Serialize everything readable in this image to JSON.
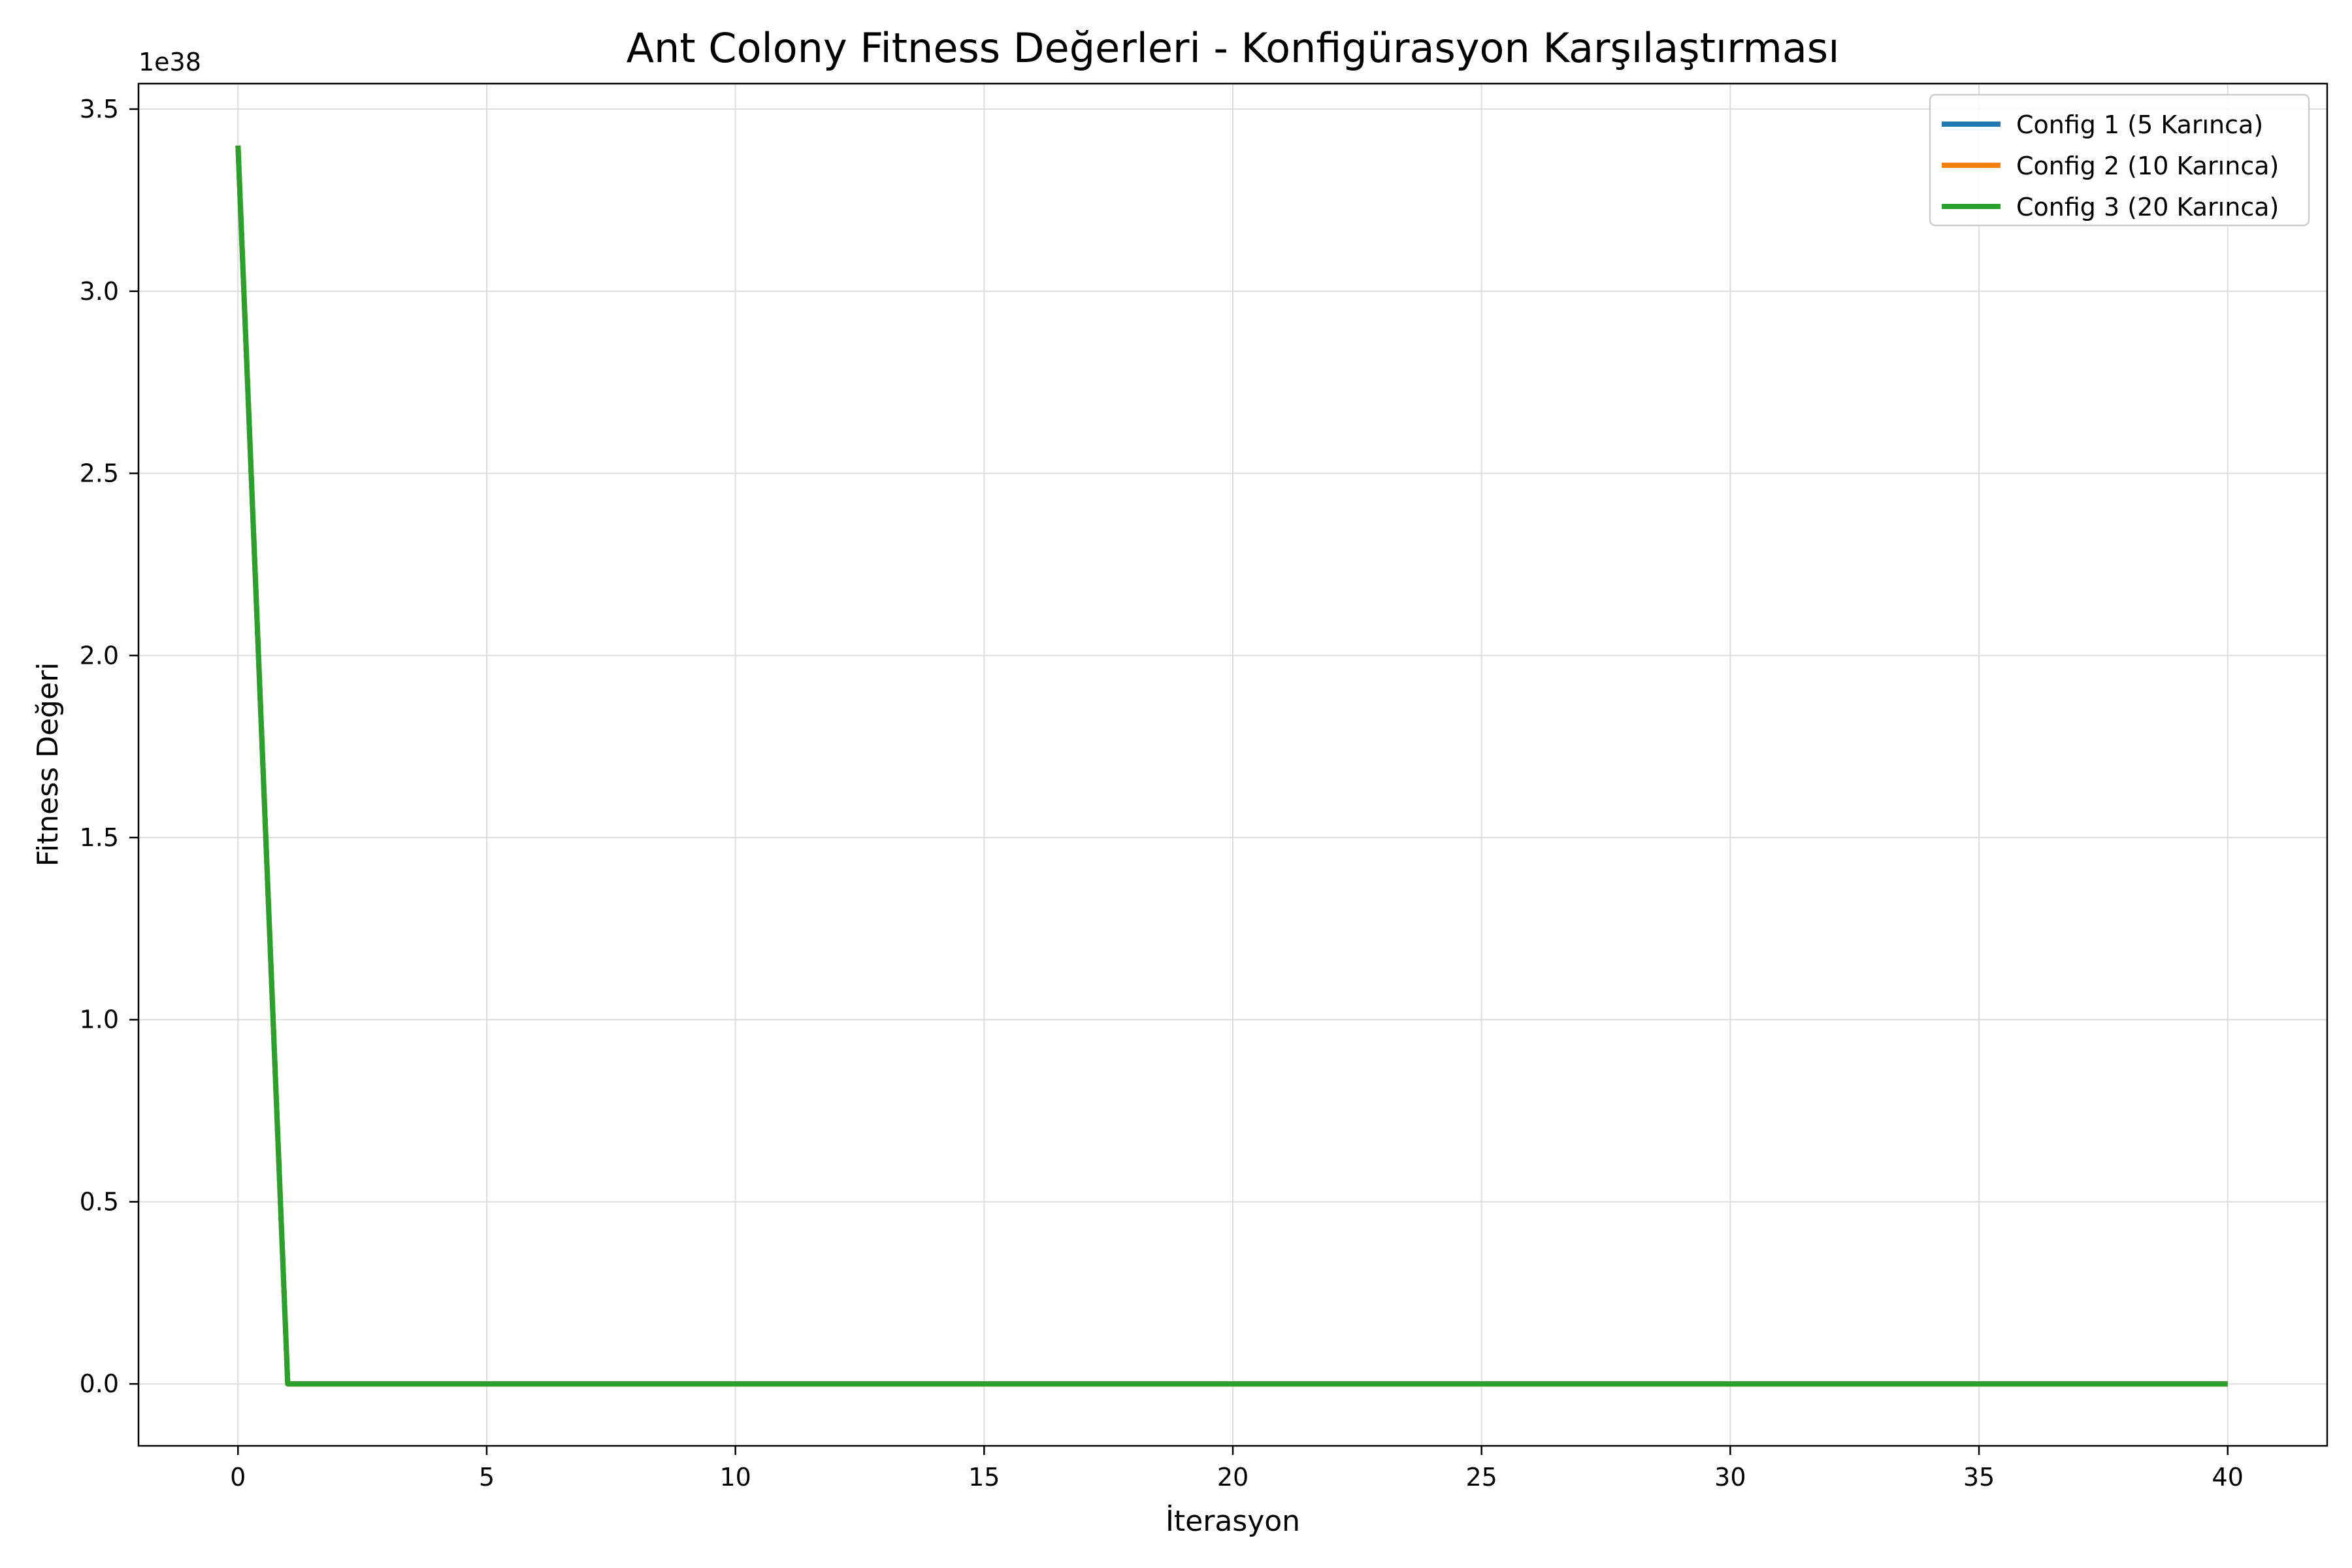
{
  "chart_data": {
    "type": "line",
    "title": "Ant Colony Fitness Değerleri - Konfigürasyon Karşılaştırması",
    "xlabel": "İterasyon",
    "ylabel": "Fitness Değeri",
    "y_offset_label": "1e38",
    "y_scale": 1e+38,
    "xlim": [
      -2,
      42
    ],
    "ylim": [
      -0.17,
      3.57
    ],
    "xticks": [
      0,
      5,
      10,
      15,
      20,
      25,
      30,
      35,
      40
    ],
    "yticks": [
      0.0,
      0.5,
      1.0,
      1.5,
      2.0,
      2.5,
      3.0,
      3.5
    ],
    "ytick_labels": [
      "0.0",
      "0.5",
      "1.0",
      "1.5",
      "2.0",
      "2.5",
      "3.0",
      "3.5"
    ],
    "grid": true,
    "legend_position": "top-right",
    "x": [
      0,
      1,
      2,
      3,
      4,
      5,
      6,
      7,
      8,
      9,
      10,
      11,
      12,
      13,
      14,
      15,
      16,
      17,
      18,
      19,
      20,
      21,
      22,
      23,
      24,
      25,
      26,
      27,
      28,
      29,
      30,
      31,
      32,
      33,
      34,
      35,
      36,
      37,
      38,
      39,
      40
    ],
    "series": [
      {
        "name": "Config 1 (5 Karınca)",
        "color": "#1f77b4",
        "values": [
          3.4,
          0,
          0,
          0,
          0,
          0,
          0,
          0,
          0,
          0,
          0,
          0,
          0,
          0,
          0,
          0,
          0,
          0,
          0,
          0,
          0,
          0,
          0,
          0,
          0,
          0,
          0,
          0,
          0,
          0,
          0,
          0,
          0,
          0,
          0,
          0,
          0,
          0,
          0,
          0,
          0
        ]
      },
      {
        "name": "Config 2 (10 Karınca)",
        "color": "#ff7f0e",
        "values": [
          3.4,
          0,
          0,
          0,
          0,
          0,
          0,
          0,
          0,
          0,
          0,
          0,
          0,
          0,
          0,
          0,
          0,
          0,
          0,
          0,
          0,
          0,
          0,
          0,
          0,
          0,
          0,
          0,
          0,
          0,
          0,
          0,
          0,
          0,
          0,
          0,
          0,
          0,
          0,
          0,
          0
        ]
      },
      {
        "name": "Config 3 (20 Karınca)",
        "color": "#2ca02c",
        "values": [
          3.4,
          0,
          0,
          0,
          0,
          0,
          0,
          0,
          0,
          0,
          0,
          0,
          0,
          0,
          0,
          0,
          0,
          0,
          0,
          0,
          0,
          0,
          0,
          0,
          0,
          0,
          0,
          0,
          0,
          0,
          0,
          0,
          0,
          0,
          0,
          0,
          0,
          0,
          0,
          0,
          0
        ]
      }
    ]
  }
}
